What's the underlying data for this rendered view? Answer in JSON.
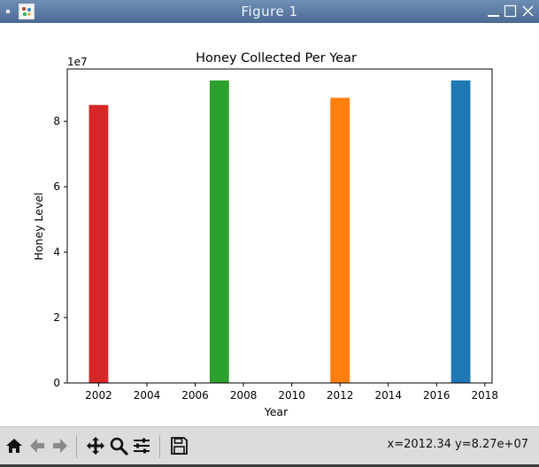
{
  "window": {
    "title": "Figure 1"
  },
  "toolbar": {
    "tools": [
      {
        "name": "home-icon"
      },
      {
        "name": "back-arrow-icon"
      },
      {
        "name": "forward-arrow-icon"
      },
      {
        "name": "pan-move-icon"
      },
      {
        "name": "zoom-magnifier-icon"
      },
      {
        "name": "configure-subplots-icon"
      },
      {
        "name": "save-disk-icon"
      }
    ],
    "coords": "x=2012.34 y=8.27e+07"
  },
  "chart_data": {
    "type": "bar",
    "title": "Honey Collected Per Year",
    "xlabel": "Year",
    "ylabel": "Honey Level",
    "scale_label": "1e7",
    "x": [
      2002,
      2007,
      2012,
      2017
    ],
    "values": [
      85000000,
      92500000,
      87200000,
      92500000
    ],
    "colors": [
      "#d62728",
      "#2ca02c",
      "#ff7f0e",
      "#1f77b4"
    ],
    "xlim": [
      2000.7,
      2018.3
    ],
    "ylim": [
      0,
      96000000
    ],
    "xticks": [
      "2002",
      "2004",
      "2006",
      "2008",
      "2010",
      "2012",
      "2014",
      "2016",
      "2018"
    ],
    "yticks": [
      "0",
      "2",
      "4",
      "6",
      "8"
    ],
    "grid": false,
    "legend": "none"
  }
}
